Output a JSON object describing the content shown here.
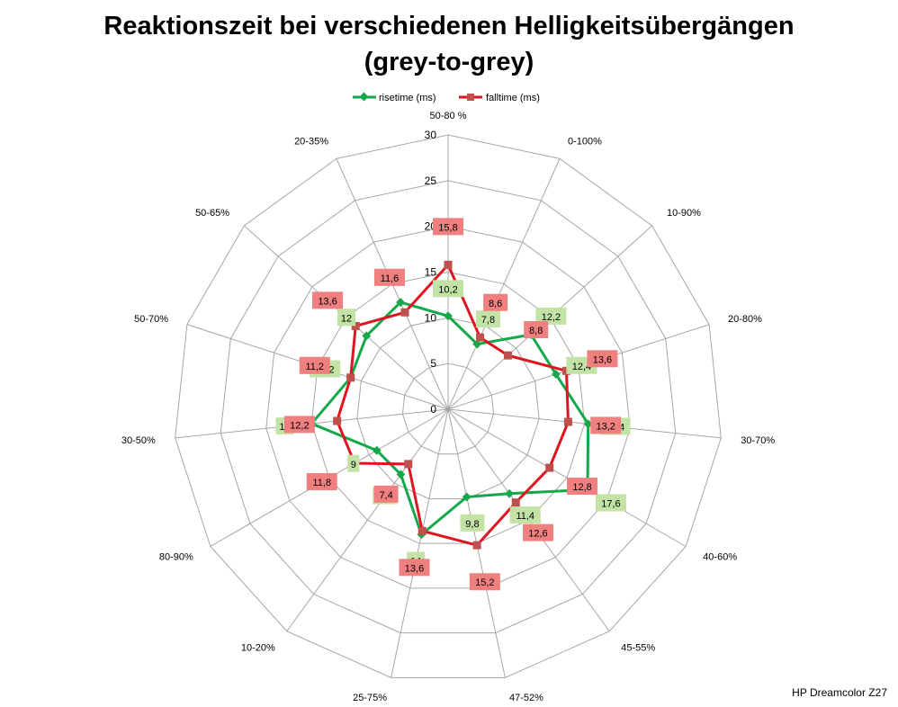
{
  "title_line1": "Reaktionszeit bei verschiedenen Helligkeitsübergängen",
  "title_line2": "(grey-to-grey)",
  "credit": "HP Dreamcolor Z27",
  "colors": {
    "rise": "#14A84B",
    "fall": "#E0141E",
    "rise_label_bg": "#C3E3A6",
    "fall_label_bg": "#F08080",
    "grid": "#A6A6A6"
  },
  "chart_data": {
    "type": "radar",
    "categories": [
      "50-80 %",
      "0-100%",
      "10-90%",
      "20-80%",
      "30-70%",
      "40-60%",
      "45-55%",
      "47-52%",
      "25-75%",
      "10-20%",
      "80-90%",
      "30-50%",
      "50-70%",
      "50-65%",
      "20-35%"
    ],
    "series": [
      {
        "name": "risetime (ms)",
        "values": [
          10.2,
          7.8,
          12.2,
          12.4,
          15.4,
          17.6,
          11.4,
          9.8,
          14,
          8.8,
          9,
          15,
          11.2,
          12,
          12.8
        ]
      },
      {
        "name": "falltime (ms)",
        "values": [
          15.8,
          8.6,
          8.8,
          13.6,
          13.2,
          12.8,
          12.6,
          15.2,
          13.6,
          7.4,
          11.8,
          12.2,
          11.2,
          13.6,
          11.6
        ]
      }
    ],
    "rlim": [
      0,
      30
    ],
    "ticks": [
      0,
      5,
      10,
      15,
      20,
      25,
      30
    ],
    "legend": "top"
  }
}
